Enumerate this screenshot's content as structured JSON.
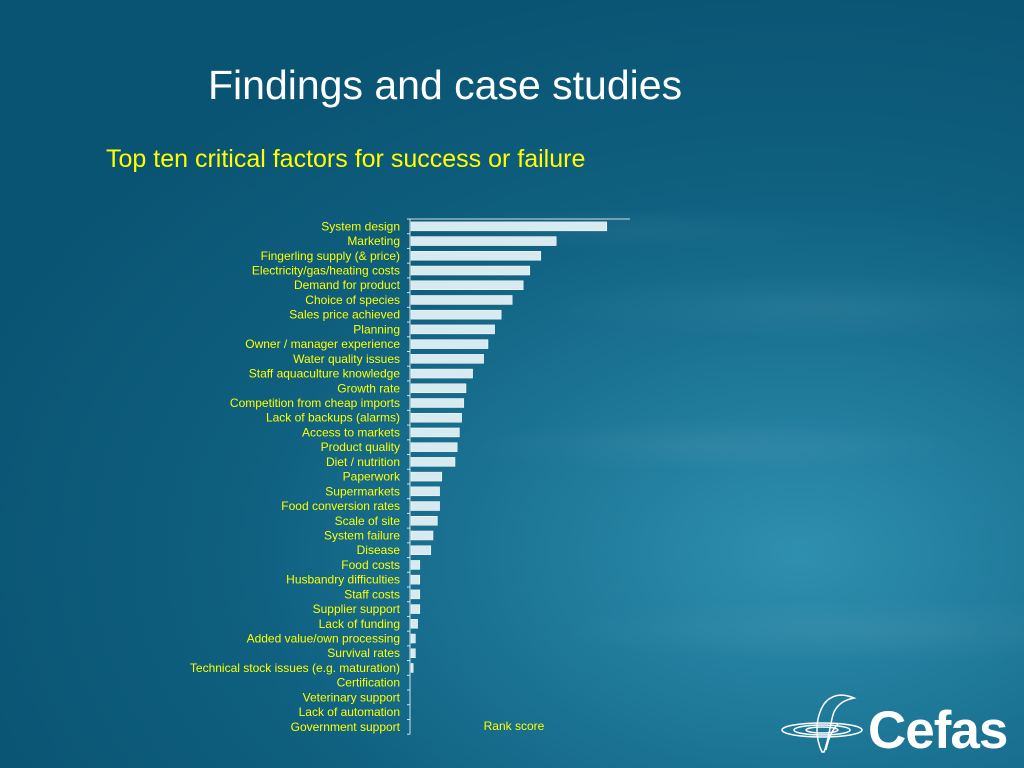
{
  "slide": {
    "title": "Findings and case studies",
    "subtitle": "Top ten critical factors for success or failure"
  },
  "logo": {
    "text": "Cefas",
    "icon": "fish-swirl-logo"
  },
  "colors": {
    "accent_text": "#ffff00",
    "bar_fill": "#d6eaf0",
    "title_text": "#ffffff"
  },
  "chart_data": {
    "type": "bar",
    "orientation": "horizontal",
    "categories": [
      "System design",
      "Marketing",
      "Fingerling supply (& price)",
      "Electricity/gas/heating costs",
      "Demand for product",
      "Choice of species",
      "Sales price achieved",
      "Planning",
      "Owner / manager experience",
      "Water quality issues",
      "Staff aquaculture knowledge",
      "Growth rate",
      "Competition from cheap imports",
      "Lack of backups (alarms)",
      "Access to markets",
      "Product quality",
      "Diet / nutrition",
      "Paperwork",
      "Supermarkets",
      "Food conversion rates",
      "Scale of site",
      "System failure",
      "Disease",
      "Food costs",
      "Husbandry difficulties",
      "Staff costs",
      "Supplier support",
      "Lack of funding",
      "Added value/own processing",
      "Survival rates",
      "Technical stock issues (e.g. maturation)",
      "Certification",
      "Veterinary support",
      "Lack of automation",
      "Government support"
    ],
    "values": [
      89,
      66,
      59,
      54,
      51,
      46,
      41,
      38,
      35,
      33,
      28,
      25,
      24,
      23,
      22,
      21,
      20,
      14,
      13,
      13,
      12,
      10,
      9,
      4,
      4,
      4,
      4,
      3,
      2,
      2,
      1,
      0,
      0,
      0,
      0
    ],
    "xlabel": "Rank score",
    "ylabel": "",
    "xlim": [
      0,
      100
    ],
    "grid": false,
    "legend": "none"
  }
}
